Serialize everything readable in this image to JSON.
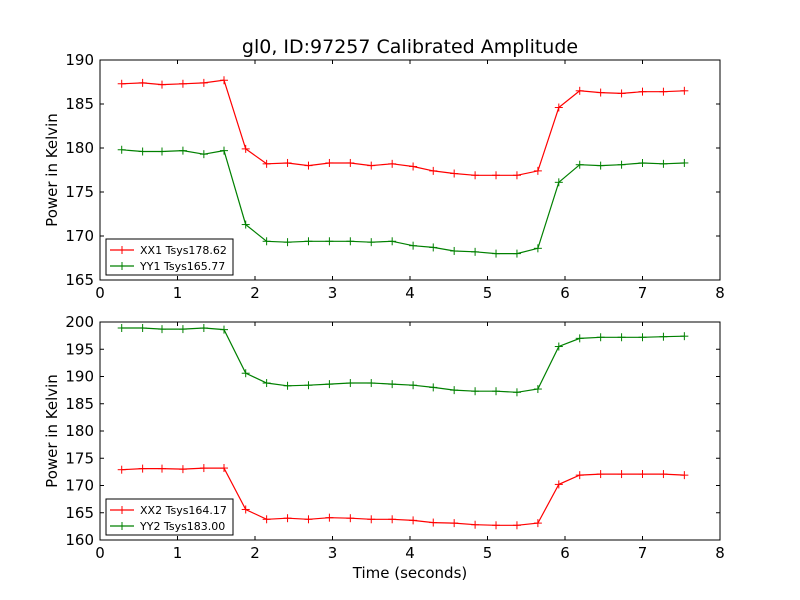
{
  "figure": {
    "title": "gl0, ID:97257 Calibrated Amplitude",
    "background": "#ffffff"
  },
  "chart_data": [
    {
      "type": "line",
      "title": "gl0, ID:97257 Calibrated Amplitude",
      "xlabel": "",
      "ylabel": "Power in Kelvin",
      "xlim": [
        0,
        8
      ],
      "ylim": [
        165,
        190
      ],
      "xticks": [
        0,
        1,
        2,
        3,
        4,
        5,
        6,
        7,
        8
      ],
      "yticks": [
        165,
        170,
        175,
        180,
        185,
        190
      ],
      "grid": false,
      "legend_position": "lower-left",
      "x": [
        0.28,
        0.55,
        0.8,
        1.07,
        1.34,
        1.6,
        1.88,
        2.15,
        2.42,
        2.69,
        2.96,
        3.23,
        3.5,
        3.77,
        4.04,
        4.3,
        4.57,
        4.84,
        5.11,
        5.38,
        5.65,
        5.92,
        6.19,
        6.46,
        6.73,
        7.0,
        7.27,
        7.54
      ],
      "series": [
        {
          "name": "XX1 Tsys178.62",
          "color": "#ff0000",
          "values": [
            187.3,
            187.4,
            187.2,
            187.3,
            187.4,
            187.7,
            179.9,
            178.2,
            178.3,
            178.0,
            178.3,
            178.3,
            178.0,
            178.2,
            177.9,
            177.4,
            177.1,
            176.9,
            176.9,
            176.9,
            177.4,
            184.6,
            186.5,
            186.3,
            186.2,
            186.4,
            186.4,
            186.5
          ]
        },
        {
          "name": "YY1 Tsys165.77",
          "color": "#008000",
          "values": [
            179.8,
            179.6,
            179.6,
            179.7,
            179.3,
            179.7,
            171.3,
            169.4,
            169.3,
            169.4,
            169.4,
            169.4,
            169.3,
            169.4,
            168.9,
            168.7,
            168.3,
            168.2,
            168.0,
            168.0,
            168.6,
            176.1,
            178.1,
            178.0,
            178.1,
            178.3,
            178.2,
            178.3
          ]
        }
      ]
    },
    {
      "type": "line",
      "title": "",
      "xlabel": "Time (seconds)",
      "ylabel": "Power in Kelvin",
      "xlim": [
        0,
        8
      ],
      "ylim": [
        160,
        200
      ],
      "xticks": [
        0,
        1,
        2,
        3,
        4,
        5,
        6,
        7,
        8
      ],
      "yticks": [
        160,
        165,
        170,
        175,
        180,
        185,
        190,
        195,
        200
      ],
      "grid": false,
      "legend_position": "lower-left",
      "x": [
        0.28,
        0.55,
        0.8,
        1.07,
        1.34,
        1.6,
        1.88,
        2.15,
        2.42,
        2.69,
        2.96,
        3.23,
        3.5,
        3.77,
        4.04,
        4.3,
        4.57,
        4.84,
        5.11,
        5.38,
        5.65,
        5.92,
        6.19,
        6.46,
        6.73,
        7.0,
        7.27,
        7.54
      ],
      "series": [
        {
          "name": "XX2 Tsys164.17",
          "color": "#ff0000",
          "values": [
            172.9,
            173.1,
            173.1,
            173.0,
            173.2,
            173.2,
            165.6,
            163.8,
            164.0,
            163.8,
            164.1,
            164.0,
            163.8,
            163.8,
            163.6,
            163.2,
            163.1,
            162.8,
            162.7,
            162.7,
            163.1,
            170.2,
            171.9,
            172.1,
            172.1,
            172.1,
            172.1,
            171.9
          ]
        },
        {
          "name": "YY2 Tsys183.00",
          "color": "#008000",
          "values": [
            198.9,
            198.9,
            198.7,
            198.7,
            198.9,
            198.6,
            190.6,
            188.8,
            188.3,
            188.4,
            188.6,
            188.8,
            188.8,
            188.6,
            188.4,
            188.0,
            187.5,
            187.3,
            187.3,
            187.1,
            187.7,
            195.5,
            197.0,
            197.2,
            197.2,
            197.2,
            197.3,
            197.4
          ]
        }
      ]
    }
  ]
}
